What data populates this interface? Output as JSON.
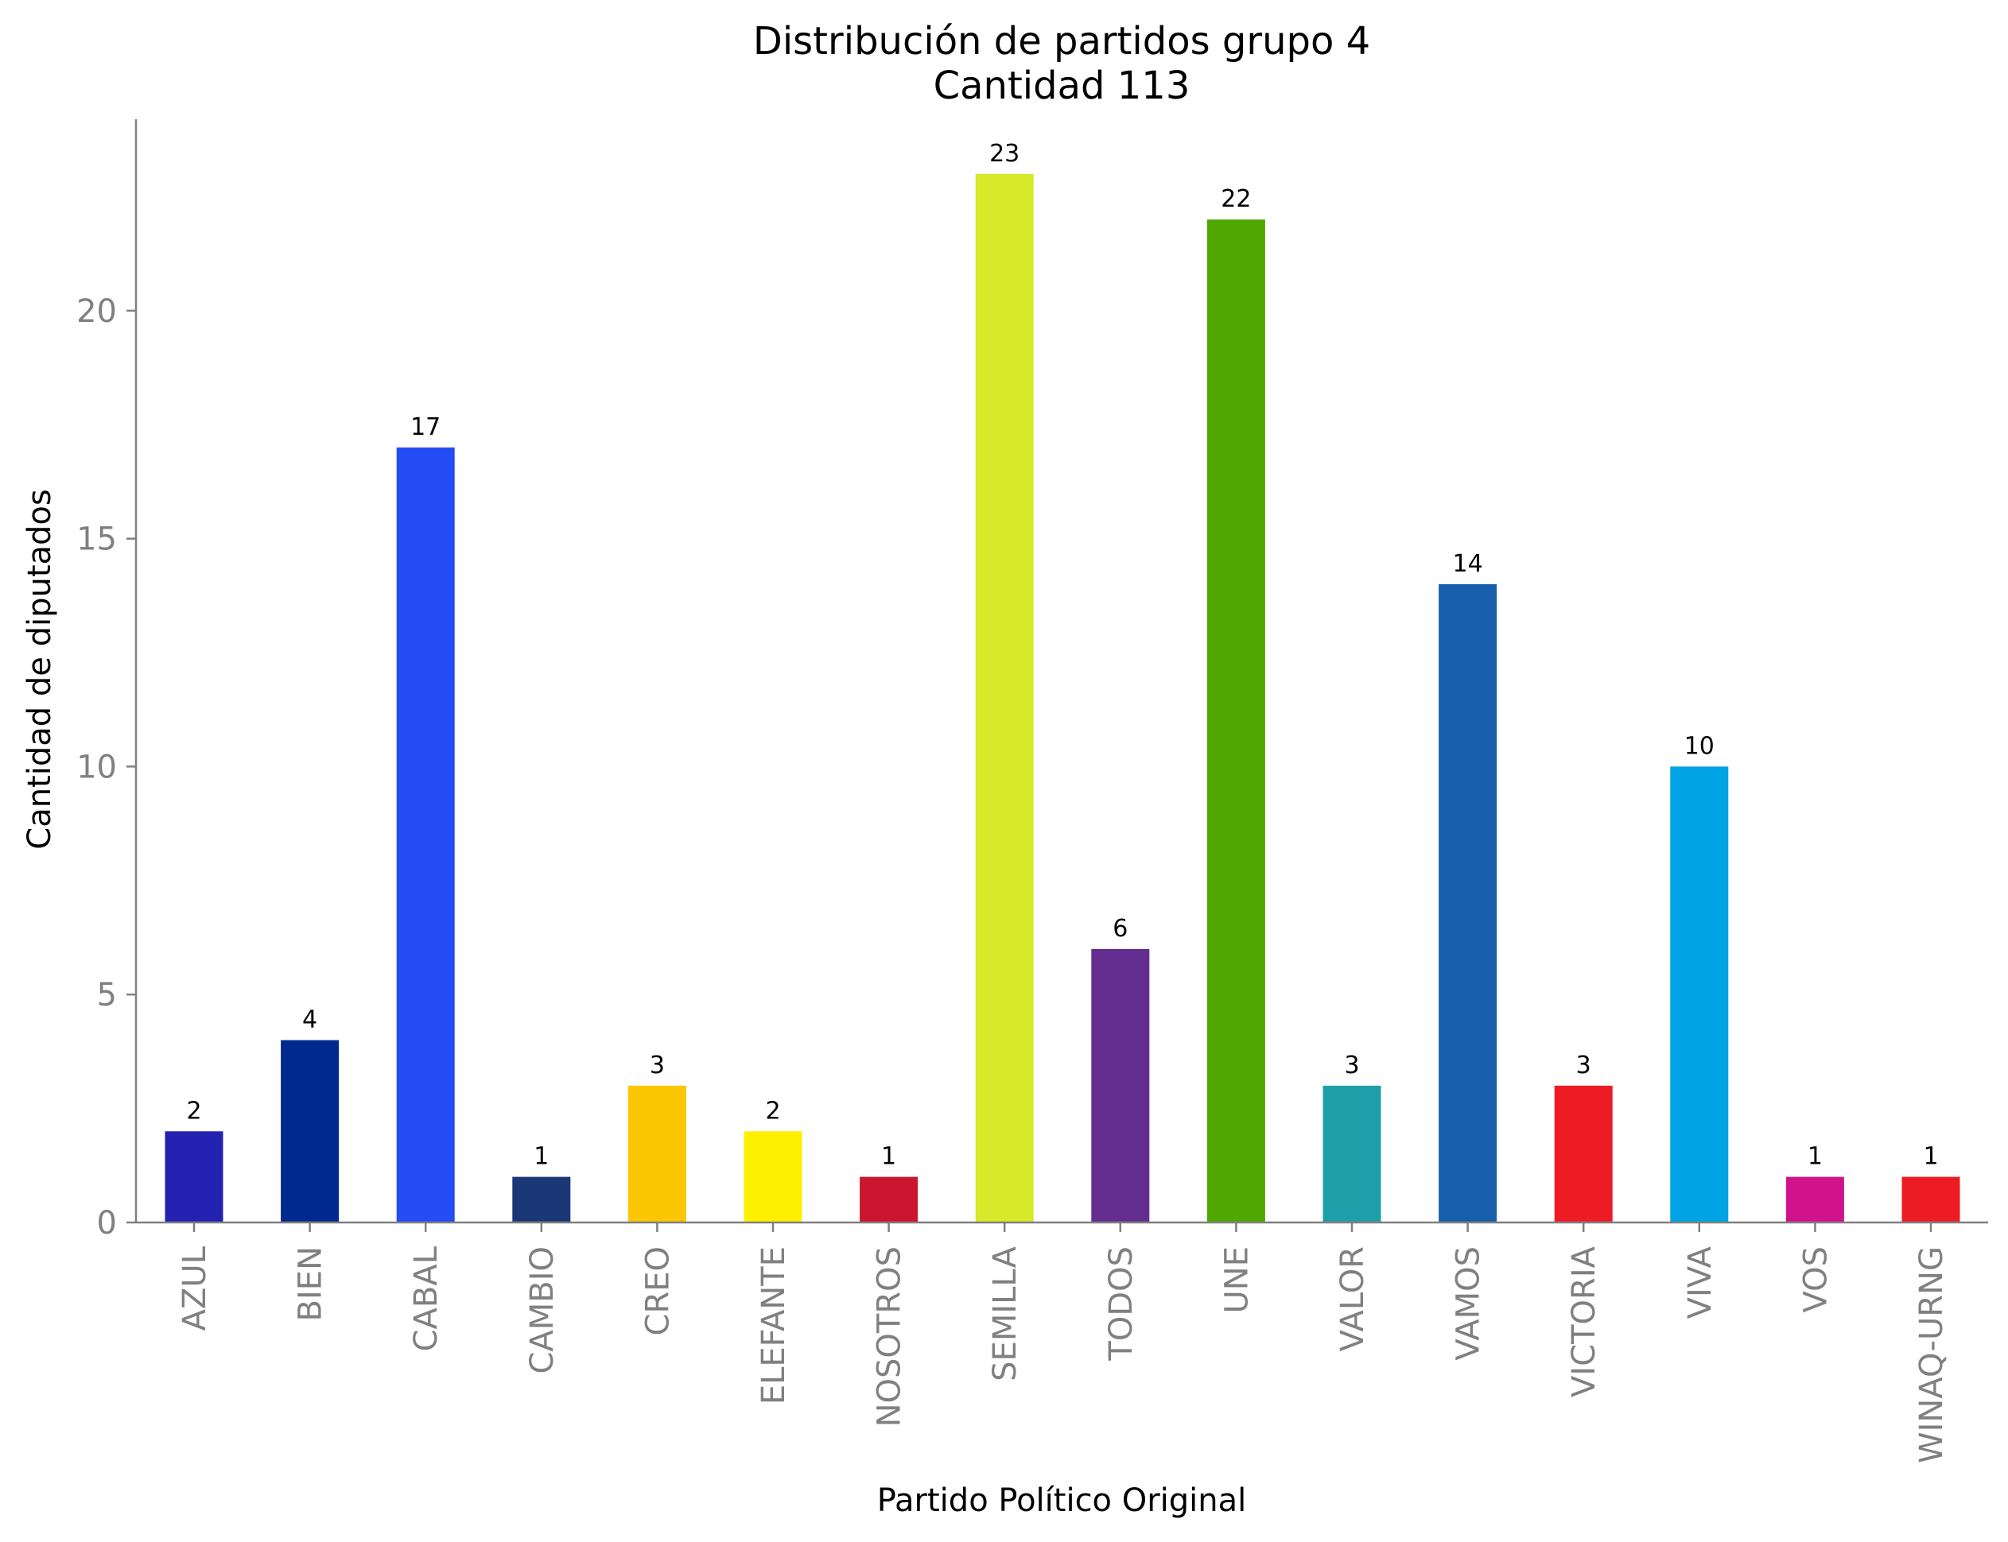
{
  "chart_data": {
    "type": "bar",
    "title": "Distribución de partidos grupo 4",
    "subtitle": "Cantidad 113",
    "xlabel": "Partido Político Original",
    "ylabel": "Cantidad de diputados",
    "categories": [
      "AZUL",
      "BIEN",
      "CABAL",
      "CAMBIO",
      "CREO",
      "ELEFANTE",
      "NOSOTROS",
      "SEMILLA",
      "TODOS",
      "UNE",
      "VALOR",
      "VAMOS",
      "VICTORIA",
      "VIVA",
      "VOS",
      "WINAQ-URNG"
    ],
    "values": [
      2,
      4,
      17,
      1,
      3,
      2,
      1,
      23,
      6,
      22,
      3,
      14,
      3,
      10,
      1,
      1
    ],
    "colors": [
      "#2321b0",
      "#002a8f",
      "#234cf5",
      "#1b3775",
      "#fbc604",
      "#fff000",
      "#cc162f",
      "#d7e928",
      "#642d90",
      "#4fa700",
      "#1e9ea8",
      "#175fac",
      "#ed1c24",
      "#00a3e4",
      "#d1128a",
      "#ed1c24"
    ],
    "ylim": [
      0,
      24.2
    ],
    "yticks": [
      0,
      5,
      10,
      15,
      20
    ],
    "grid": false,
    "legend": "none",
    "axis_color": "#808080"
  }
}
